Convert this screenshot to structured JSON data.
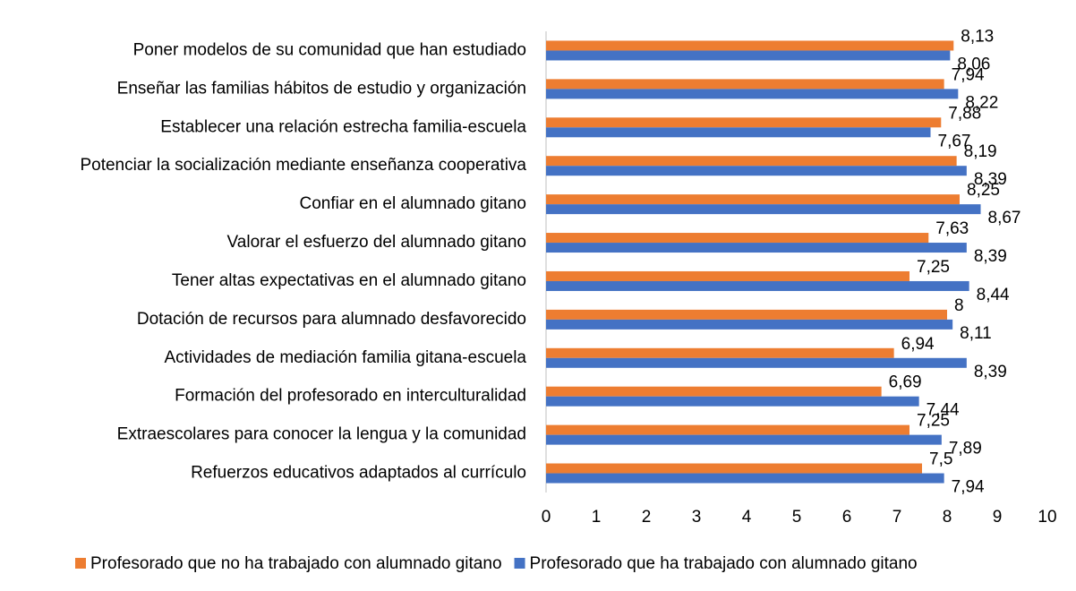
{
  "chart_data": {
    "type": "bar",
    "orientation": "horizontal",
    "categories": [
      "Poner modelos de su comunidad que han estudiado",
      "Enseñar las familias hábitos de estudio y organización",
      "Establecer una relación estrecha familia-escuela",
      "Potenciar la socialización mediante enseñanza cooperativa",
      "Confiar en el alumnado gitano",
      "Valorar el esfuerzo del alumnado gitano",
      "Tener altas expectativas en el alumnado gitano",
      "Dotación de recursos para alumnado desfavorecido",
      "Actividades de mediación familia gitana-escuela",
      "Formación del profesorado en interculturalidad",
      "Extraescolares para conocer la lengua y la comunidad",
      "Refuerzos educativos adaptados al currículo"
    ],
    "series": [
      {
        "name": "Profesorado que no ha trabajado con alumnado gitano",
        "color": "#ed7d31",
        "values": [
          8.13,
          7.94,
          7.88,
          8.19,
          8.25,
          7.63,
          7.25,
          8,
          6.94,
          6.69,
          7.25,
          7.5
        ],
        "value_labels": [
          "8,13",
          "7,94",
          "7,88",
          "8,19",
          "8,25",
          "7,63",
          "7,25",
          "8",
          "6,94",
          "6,69",
          "7,25",
          "7,5"
        ]
      },
      {
        "name": "Profesorado que ha trabajado con alumnado gitano",
        "color": "#4472c4",
        "values": [
          8.06,
          8.22,
          7.67,
          8.39,
          8.67,
          8.39,
          8.44,
          8.11,
          8.39,
          7.44,
          7.89,
          7.94
        ],
        "value_labels": [
          "8,06",
          "8,22",
          "7,67",
          "8,39",
          "8,67",
          "8,39",
          "8,44",
          "8,11",
          "8,39",
          "7,44",
          "7,89",
          "7,94"
        ]
      }
    ],
    "xlim": [
      0,
      10
    ],
    "xticks": [
      0,
      1,
      2,
      3,
      4,
      5,
      6,
      7,
      8,
      9,
      10
    ],
    "grid": false,
    "legend": "bottom"
  }
}
